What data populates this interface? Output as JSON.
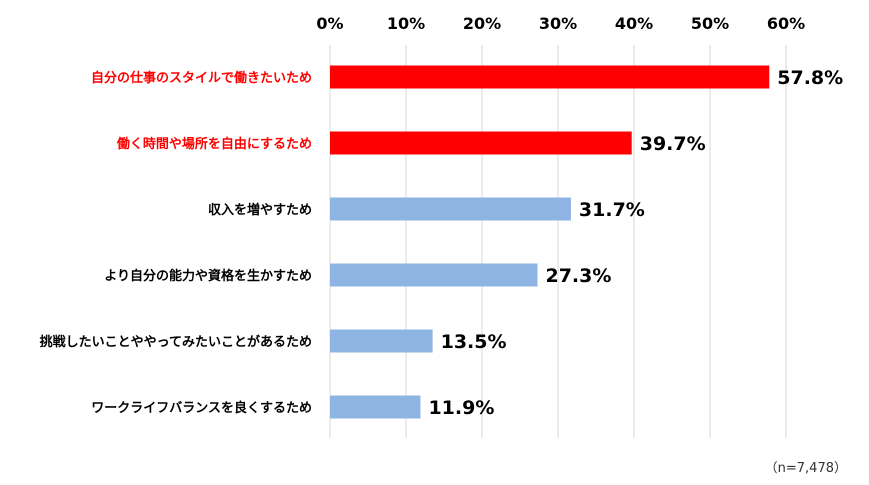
{
  "chart_data": {
    "type": "bar",
    "orientation": "horizontal",
    "categories": [
      "自分の仕事のスタイルで働きたいため",
      "働く時間や場所を自由にするため",
      "収入を増やすため",
      "より自分の能力や資格を生かすため",
      "挑戦したいことややってみたいことがあるため",
      "ワークライフバランスを良くするため"
    ],
    "values": [
      57.8,
      39.7,
      31.7,
      27.3,
      13.5,
      11.9
    ],
    "value_labels": [
      "57.8%",
      "39.7%",
      "31.7%",
      "27.3%",
      "13.5%",
      "11.9%"
    ],
    "highlighted": [
      true,
      true,
      false,
      false,
      false,
      false
    ],
    "xlim": [
      0,
      60
    ],
    "x_ticks": [
      "0%",
      "10%",
      "20%",
      "30%",
      "40%",
      "50%",
      "60%"
    ],
    "axis_position": "top",
    "grid": true,
    "colors": {
      "highlight": "#ff0000",
      "default": "#8eb4e3",
      "grid": "#d9d9d9"
    }
  },
  "note": "（n=7,478）"
}
